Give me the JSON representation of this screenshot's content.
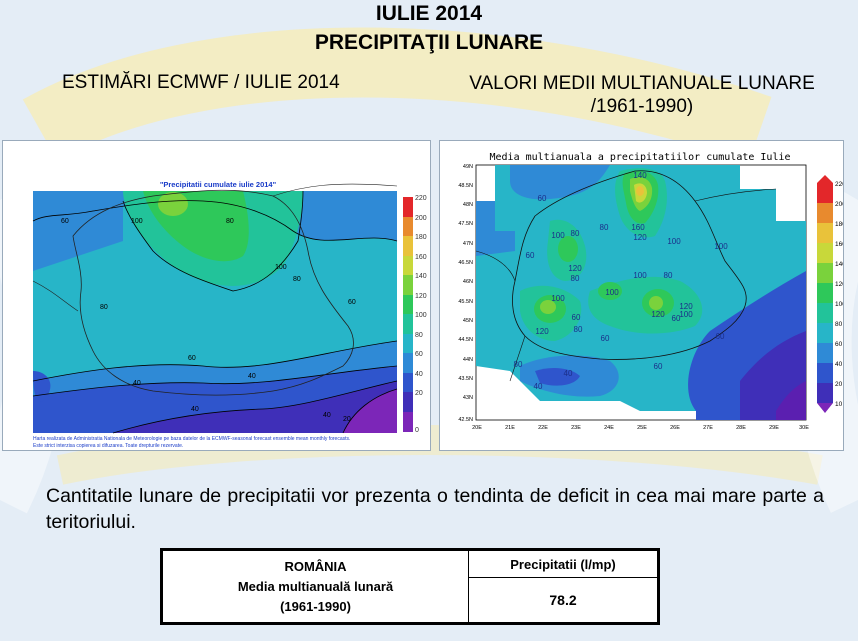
{
  "header": {
    "title_line1": "IULIE 2014",
    "title_line2": "PRECIPITAŢII LUNARE"
  },
  "left_map": {
    "heading": "ESTIMĂRI ECMWF / IULIE 2014",
    "inner_title": "\"Precipitatii cumulate iulie 2014\"",
    "footnote_line1": "Harta realizata de Administratia Nationala de Meteorologie pe baza datelor de la ECMWF-seasonal forecast ensemble mean monthly forecasts.",
    "footnote_line2": "Este strict interzisa copierea si difuzarea. Toate drepturile rezervate.",
    "colorbar_ticks": [
      "220",
      "200",
      "180",
      "160",
      "140",
      "120",
      "100",
      "80",
      "60",
      "40",
      "20",
      "0"
    ],
    "contour_labels": [
      "60",
      "100",
      "80",
      "100",
      "80",
      "80",
      "60",
      "60",
      "40",
      "40",
      "40",
      "40",
      "20"
    ]
  },
  "right_map": {
    "heading_line1": "VALORI MEDII MULTIANUALE LUNARE",
    "heading_line2": "/1961-1990)",
    "inner_title": "Media multianuala a precipitatiilor cumulate Iulie",
    "lat_ticks": [
      "49N",
      "48.5N",
      "48N",
      "47.5N",
      "47N",
      "46.5N",
      "46N",
      "45.5N",
      "45N",
      "44.5N",
      "44N",
      "43.5N",
      "43N",
      "42.5N"
    ],
    "lon_ticks": [
      "20E",
      "21E",
      "22E",
      "23E",
      "24E",
      "25E",
      "26E",
      "27E",
      "28E",
      "29E",
      "30E"
    ],
    "colorbar_ticks": [
      "220",
      "200",
      "180",
      "160",
      "140",
      "120",
      "100",
      "80",
      "60",
      "40",
      "20",
      "10"
    ],
    "contour_labels": [
      "60",
      "140",
      "160",
      "120",
      "80",
      "100",
      "100",
      "80",
      "60",
      "100",
      "120",
      "80",
      "100",
      "80",
      "100",
      "100",
      "120",
      "120",
      "100",
      "60",
      "120",
      "60",
      "80",
      "60",
      "40",
      "40",
      "60",
      "60",
      "80"
    ]
  },
  "colors": {
    "c0": "#7c26b8",
    "c10": "#5b1fb0",
    "c20": "#3f2fb8",
    "c40": "#2f55cc",
    "c60": "#2f8ad6",
    "c80": "#27b5c8",
    "c100": "#22c39a",
    "c120": "#2ec85a",
    "c140": "#7ad23c",
    "c160": "#c8d83a",
    "c180": "#e9c23a",
    "c200": "#e88a2e",
    "c220": "#e3272a"
  },
  "text": {
    "paragraph": "Cantitatile lunare de precipitatii vor prezenta o tendinta de deficit in cea mai mare parte a teritoriului."
  },
  "table": {
    "left_line1": "ROMÂNIA",
    "left_line2": "Media multianuală lunară",
    "left_line3": "(1961-1990)",
    "right_header": "Precipitatii (l/mp)",
    "right_value": "78.2"
  }
}
